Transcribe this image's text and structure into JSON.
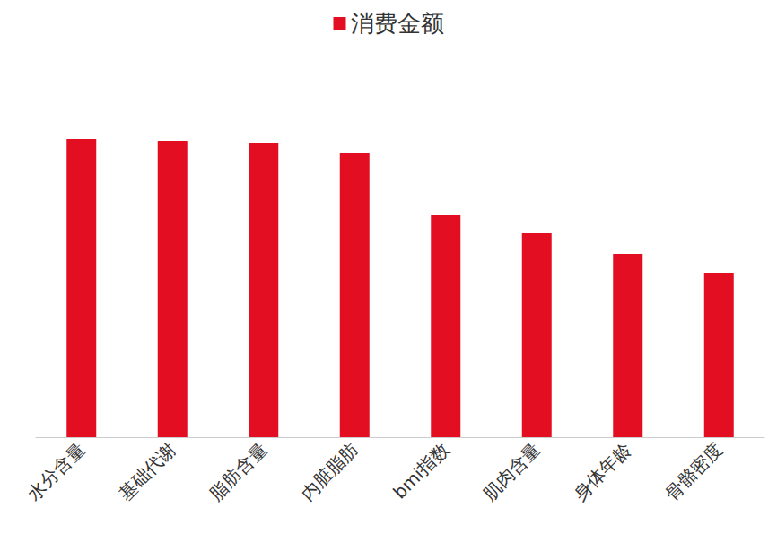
{
  "chart_data": {
    "type": "bar",
    "categories": [
      "水分含量",
      "基础代谢",
      "脂肪含量",
      "内脏脂肪",
      "bmi指数",
      "肌肉含量",
      "身体年龄",
      "骨骼密度"
    ],
    "series": [
      {
        "name": "消费金额",
        "color": "#e30e22",
        "values": [
          333,
          331,
          328,
          317,
          248,
          228,
          205,
          183
        ]
      }
    ],
    "ylim": [
      0,
      350
    ],
    "grid": false,
    "legend": "top",
    "tick_labels": "x"
  }
}
